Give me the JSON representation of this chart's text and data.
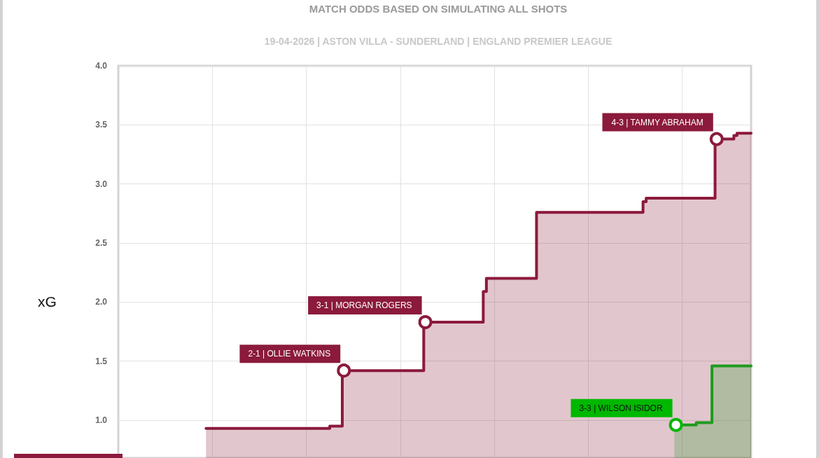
{
  "chart_data": {
    "type": "area",
    "title": "MATCH ODDS BASED ON SIMULATING ALL SHOTS",
    "subtitle": "19-04-2026 | ASTON VILLA - SUNDERLAND | ENGLAND PREMIER LEAGUE",
    "ylabel": "xG",
    "categories": [
      null,
      null,
      null,
      null,
      null,
      null,
      null,
      null,
      null,
      null,
      null,
      null,
      null,
      null,
      null,
      null,
      null,
      null,
      null,
      null,
      null,
      null,
      null,
      null,
      null,
      null,
      null,
      null,
      null,
      null,
      null,
      null,
      null,
      null,
      null,
      null,
      null,
      null,
      null,
      null,
      null,
      null,
      null,
      null,
      null,
      null,
      null,
      null,
      null,
      null,
      null,
      null,
      null,
      null,
      null,
      null,
      null,
      null,
      null,
      null,
      null,
      null,
      null,
      null,
      null,
      null,
      null,
      null,
      null,
      null,
      null,
      null,
      null,
      null,
      null,
      null,
      null,
      null,
      null,
      null,
      null,
      null,
      null,
      null,
      null,
      null,
      null,
      null,
      null,
      null,
      null,
      null,
      null,
      null,
      null,
      null,
      null,
      null,
      null,
      null,
      null,
      null,
      null,
      null,
      null,
      null,
      null,
      null,
      null,
      null,
      null,
      null,
      null,
      null,
      null,
      null,
      null,
      null,
      null,
      null,
      null,
      null,
      null,
      null,
      null,
      null,
      null,
      null,
      null,
      null,
      null,
      null,
      null,
      null,
      null,
      null,
      null,
      null,
      null,
      null,
      null,
      null,
      null,
      null,
      null,
      null,
      null,
      null,
      null,
      null,
      null,
      null,
      null,
      null,
      null,
      null,
      null,
      null,
      null,
      null,
      null,
      null,
      null,
      null,
      null,
      null,
      null,
      null,
      null,
      null,
      null,
      null,
      null,
      null,
      null
    ],
    "series": [
      {
        "color": "#8b1a3c",
        "values": [
          0.93,
          0.93,
          0.93,
          0.93,
          0.93,
          0.93,
          0.93,
          0.93,
          0.93,
          0.93,
          0.93,
          0.93,
          0.93,
          0.93,
          0.93,
          0.93,
          0.93,
          0.93,
          0.93,
          0.93,
          0.93,
          0.93,
          0.93,
          0.93,
          0.93,
          0.93,
          0.93,
          0.93,
          0.93,
          0.93,
          0.93,
          0.93,
          0.93,
          0.93,
          0.93,
          0.93,
          0.93,
          0.93,
          0.93,
          0.93,
          0.95,
          0.95,
          0.95,
          0.95,
          1.42,
          1.42,
          1.42,
          1.42,
          1.42,
          1.42,
          1.42,
          1.42,
          1.42,
          1.42,
          1.42,
          1.42,
          1.42,
          1.42,
          1.42,
          1.42,
          1.42,
          1.42,
          1.42,
          1.42,
          1.42,
          1.42,
          1.42,
          1.42,
          1.42,
          1.42,
          1.83,
          1.83,
          1.83,
          1.83,
          1.83,
          1.83,
          1.83,
          1.83,
          1.83,
          1.83,
          1.83,
          1.83,
          1.83,
          1.83,
          1.83,
          1.83,
          1.83,
          1.83,
          1.83,
          2.09,
          2.2,
          2.2,
          2.2,
          2.2,
          2.2,
          2.2,
          2.2,
          2.2,
          2.2,
          2.2,
          2.2,
          2.2,
          2.2,
          2.2,
          2.2,
          2.2,
          2.76,
          2.76,
          2.76,
          2.76,
          2.76,
          2.76,
          2.76,
          2.76,
          2.76,
          2.76,
          2.76,
          2.76,
          2.76,
          2.76,
          2.76,
          2.76,
          2.76,
          2.76,
          2.76,
          2.76,
          2.76,
          2.76,
          2.76,
          2.76,
          2.76,
          2.76,
          2.76,
          2.76,
          2.76,
          2.76,
          2.76,
          2.76,
          2.76,
          2.76,
          2.85,
          2.88,
          2.88,
          2.88,
          2.88,
          2.88,
          2.88,
          2.88,
          2.88,
          2.88,
          2.88,
          2.88,
          2.88,
          2.88,
          2.88,
          2.88,
          2.88,
          2.88,
          2.88,
          2.88,
          2.88,
          2.88,
          2.88,
          3.38,
          3.38,
          3.38,
          3.38,
          3.38,
          3.38,
          3.41,
          3.43,
          3.43,
          3.43,
          3.43,
          3.43
        ]
      },
      {
        "color": "#1f9b1f",
        "values": [
          null,
          null,
          null,
          null,
          null,
          null,
          null,
          null,
          null,
          null,
          null,
          null,
          null,
          null,
          null,
          null,
          null,
          null,
          null,
          null,
          null,
          null,
          null,
          null,
          null,
          null,
          null,
          null,
          null,
          null,
          null,
          null,
          null,
          null,
          null,
          null,
          null,
          null,
          null,
          null,
          null,
          null,
          null,
          null,
          null,
          null,
          null,
          null,
          null,
          null,
          null,
          null,
          null,
          null,
          null,
          null,
          null,
          null,
          null,
          null,
          null,
          null,
          null,
          null,
          null,
          null,
          null,
          null,
          null,
          null,
          null,
          null,
          null,
          null,
          null,
          null,
          null,
          null,
          null,
          null,
          null,
          null,
          null,
          null,
          null,
          null,
          null,
          null,
          null,
          null,
          null,
          null,
          null,
          null,
          null,
          null,
          null,
          null,
          null,
          null,
          null,
          null,
          null,
          null,
          null,
          null,
          null,
          null,
          null,
          null,
          null,
          null,
          null,
          null,
          null,
          null,
          null,
          null,
          null,
          null,
          null,
          null,
          null,
          null,
          null,
          null,
          null,
          null,
          null,
          null,
          null,
          null,
          null,
          null,
          null,
          null,
          null,
          null,
          null,
          null,
          null,
          null,
          null,
          null,
          null,
          null,
          null,
          null,
          null,
          null,
          0.96,
          0.96,
          0.96,
          0.96,
          0.96,
          0.96,
          0.96,
          0.98,
          0.98,
          0.98,
          0.98,
          0.98,
          1.46,
          1.46,
          1.46,
          1.46,
          1.46,
          1.46,
          1.46,
          1.46,
          1.46,
          1.46,
          1.46,
          1.46,
          1.46
        ]
      },
      {
        "type": "scatter",
        "marker": "circle",
        "color": "#8b1a3c",
        "values": [
          null,
          null,
          null,
          null,
          null,
          null,
          null,
          null,
          null,
          null,
          null,
          null,
          null,
          null,
          null,
          null,
          null,
          null,
          null,
          null,
          null,
          null,
          null,
          null,
          null,
          null,
          null,
          null,
          null,
          null,
          null,
          null,
          null,
          null,
          null,
          null,
          null,
          null,
          null,
          null,
          null,
          null,
          null,
          null,
          1.42,
          null,
          null,
          null,
          null,
          null,
          null,
          null,
          null,
          null,
          null,
          null,
          null,
          null,
          null,
          null,
          null,
          null,
          null,
          null,
          null,
          null,
          null,
          null,
          null,
          null,
          1.83,
          null,
          null,
          null,
          null,
          null,
          null,
          null,
          null,
          null,
          null,
          null,
          null,
          null,
          null,
          null,
          null,
          null,
          null,
          null,
          null,
          null,
          null,
          null,
          null,
          null,
          null,
          null,
          null,
          null,
          null,
          null,
          null,
          null,
          null,
          null,
          null,
          null,
          null,
          null,
          null,
          null,
          null,
          null,
          null,
          null,
          null,
          null,
          null,
          null,
          null,
          null,
          null,
          null,
          null,
          null,
          null,
          null,
          null,
          null,
          null,
          null,
          null,
          null,
          null,
          null,
          null,
          null,
          null,
          null,
          null,
          null,
          null,
          null,
          null,
          null,
          null,
          null,
          null,
          null,
          null,
          null,
          null,
          null,
          null,
          null,
          null,
          null,
          null,
          null,
          null,
          null,
          null,
          3.38,
          null,
          null,
          null,
          null,
          null,
          null,
          null,
          null,
          null,
          null,
          null
        ],
        "value_labels": [
          null,
          null,
          null,
          null,
          null,
          null,
          null,
          null,
          null,
          null,
          null,
          null,
          null,
          null,
          null,
          null,
          null,
          null,
          null,
          null,
          null,
          null,
          null,
          null,
          null,
          null,
          null,
          null,
          null,
          null,
          null,
          null,
          null,
          null,
          null,
          null,
          null,
          null,
          null,
          null,
          null,
          null,
          null,
          null,
          "2-1 | OLLIE WATKINS",
          null,
          null,
          null,
          null,
          null,
          null,
          null,
          null,
          null,
          null,
          null,
          null,
          null,
          null,
          null,
          null,
          null,
          null,
          null,
          null,
          null,
          null,
          null,
          null,
          null,
          "3-1 | MORGAN ROGERS",
          null,
          null,
          null,
          null,
          null,
          null,
          null,
          null,
          null,
          null,
          null,
          null,
          null,
          null,
          null,
          null,
          null,
          null,
          null,
          null,
          null,
          null,
          null,
          null,
          null,
          null,
          null,
          null,
          null,
          null,
          null,
          null,
          null,
          null,
          null,
          null,
          null,
          null,
          null,
          null,
          null,
          null,
          null,
          null,
          null,
          null,
          null,
          null,
          null,
          null,
          null,
          null,
          null,
          null,
          null,
          null,
          null,
          null,
          null,
          null,
          null,
          null,
          null,
          null,
          null,
          null,
          null,
          null,
          null,
          null,
          null,
          null,
          null,
          null,
          null,
          null,
          null,
          null,
          null,
          null,
          null,
          null,
          null,
          null,
          null,
          null,
          null,
          null,
          null,
          null,
          null,
          null,
          "4-3 | TAMMY ABRAHAM",
          null,
          null,
          null,
          null,
          null,
          null,
          null,
          null,
          null,
          null,
          null
        ]
      },
      {
        "type": "scatter",
        "marker": "circle",
        "color": "#00b800",
        "values": [
          null,
          null,
          null,
          null,
          null,
          null,
          null,
          null,
          null,
          null,
          null,
          null,
          null,
          null,
          null,
          null,
          null,
          null,
          null,
          null,
          null,
          null,
          null,
          null,
          null,
          null,
          null,
          null,
          null,
          null,
          null,
          null,
          null,
          null,
          null,
          null,
          null,
          null,
          null,
          null,
          null,
          null,
          null,
          null,
          null,
          null,
          null,
          null,
          null,
          null,
          null,
          null,
          null,
          null,
          null,
          null,
          null,
          null,
          null,
          null,
          null,
          null,
          null,
          null,
          null,
          null,
          null,
          null,
          null,
          null,
          null,
          null,
          null,
          null,
          null,
          null,
          null,
          null,
          null,
          null,
          null,
          null,
          null,
          null,
          null,
          null,
          null,
          null,
          null,
          null,
          null,
          null,
          null,
          null,
          null,
          null,
          null,
          null,
          null,
          null,
          null,
          null,
          null,
          null,
          null,
          null,
          null,
          null,
          null,
          null,
          null,
          null,
          null,
          null,
          null,
          null,
          null,
          null,
          null,
          null,
          null,
          null,
          null,
          null,
          null,
          null,
          null,
          null,
          null,
          null,
          null,
          null,
          null,
          null,
          null,
          null,
          null,
          null,
          null,
          null,
          null,
          null,
          null,
          null,
          null,
          null,
          null,
          null,
          null,
          null,
          0.96,
          null,
          null,
          null,
          null,
          null,
          null,
          null,
          null,
          null,
          null,
          null,
          null,
          null,
          null,
          null,
          null,
          null,
          null,
          null,
          null,
          null,
          null,
          null,
          null
        ],
        "value_labels": [
          null,
          null,
          null,
          null,
          null,
          null,
          null,
          null,
          null,
          null,
          null,
          null,
          null,
          null,
          null,
          null,
          null,
          null,
          null,
          null,
          null,
          null,
          null,
          null,
          null,
          null,
          null,
          null,
          null,
          null,
          null,
          null,
          null,
          null,
          null,
          null,
          null,
          null,
          null,
          null,
          null,
          null,
          null,
          null,
          null,
          null,
          null,
          null,
          null,
          null,
          null,
          null,
          null,
          null,
          null,
          null,
          null,
          null,
          null,
          null,
          null,
          null,
          null,
          null,
          null,
          null,
          null,
          null,
          null,
          null,
          null,
          null,
          null,
          null,
          null,
          null,
          null,
          null,
          null,
          null,
          null,
          null,
          null,
          null,
          null,
          null,
          null,
          null,
          null,
          null,
          null,
          null,
          null,
          null,
          null,
          null,
          null,
          null,
          null,
          null,
          null,
          null,
          null,
          null,
          null,
          null,
          null,
          null,
          null,
          null,
          null,
          null,
          null,
          null,
          null,
          null,
          null,
          null,
          null,
          null,
          null,
          null,
          null,
          null,
          null,
          null,
          null,
          null,
          null,
          null,
          null,
          null,
          null,
          null,
          null,
          null,
          null,
          null,
          null,
          null,
          null,
          null,
          null,
          null,
          null,
          null,
          null,
          null,
          null,
          null,
          "3-3 | WILSON ISIDOR",
          null,
          null,
          null,
          null,
          null,
          null,
          null,
          null,
          null,
          null,
          null,
          null,
          null,
          null,
          null,
          null,
          null,
          null,
          null,
          null,
          null,
          null,
          null,
          null
        ]
      }
    ],
    "ylim": [
      0.68,
      4.0
    ],
    "yticks": [
      {
        "value": 1,
        "label": "1.0"
      },
      1.5,
      {
        "value": 2,
        "label": "2.0"
      },
      2.5,
      {
        "value": 3,
        "label": "3.0"
      },
      3.5,
      {
        "value": 4,
        "label": "4.0"
      }
    ],
    "grid": true,
    "marker": "none"
  }
}
